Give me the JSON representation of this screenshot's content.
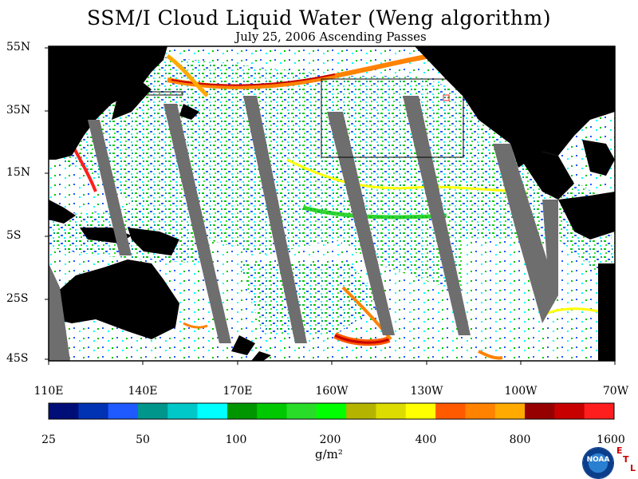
{
  "title": "SSM/I Cloud Liquid Water (Weng algorithm)",
  "subtitle": "July 25, 2006  Ascending Passes",
  "map": {
    "lat_labels": [
      "55N",
      "35N",
      "15N",
      "5S",
      "25S",
      "45S"
    ],
    "lon_labels": [
      "110E",
      "140E",
      "170E",
      "160W",
      "130W",
      "100W",
      "70W"
    ]
  },
  "colorbar": {
    "tick_labels": [
      "25",
      "50",
      "100",
      "200",
      "400",
      "800",
      "1600"
    ],
    "units": "g/m²",
    "colors": [
      "#000e78",
      "#0032b4",
      "#1e5aff",
      "#00968c",
      "#00c8c8",
      "#00ffff",
      "#009600",
      "#00c800",
      "#28dc28",
      "#00ff00",
      "#b4b400",
      "#dcdc00",
      "#ffff00",
      "#ff5a00",
      "#ff8200",
      "#ffaa00",
      "#960000",
      "#c80000",
      "#ff1e1e"
    ]
  },
  "logo": {
    "name": "noaa-logo",
    "text": "NOAA"
  },
  "lab_mark": {
    "letters": [
      "E",
      "T",
      "L"
    ]
  }
}
